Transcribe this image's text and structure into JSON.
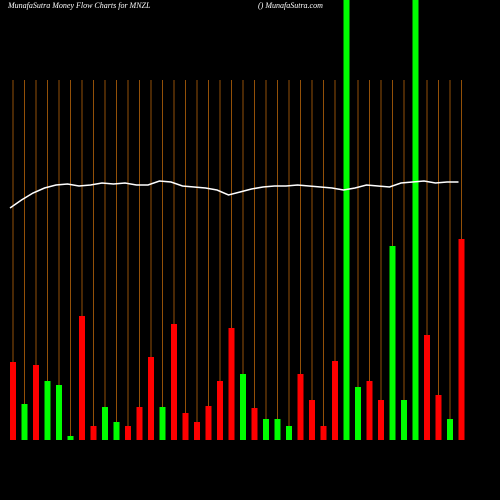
{
  "chart_data": {
    "type": "bar",
    "title": "MunafaSutra  Money Flow  Charts for MNZL",
    "subtitle": "() MunafaSutra.com",
    "categories": [
      null,
      null,
      null,
      null,
      null,
      null,
      null,
      null,
      null,
      null,
      null,
      null,
      null,
      null,
      null,
      null,
      null,
      null,
      null,
      null,
      null,
      null,
      null,
      null,
      null,
      null,
      null,
      null,
      null,
      null,
      null,
      null,
      null,
      null,
      null,
      null,
      null,
      null,
      null,
      null
    ],
    "values": [
      78,
      36,
      75,
      59,
      55,
      4,
      124,
      14,
      33,
      18,
      14,
      33,
      83,
      33,
      116,
      27,
      18,
      34,
      59,
      112,
      66,
      32,
      21,
      21,
      14,
      66,
      40,
      14,
      79,
      440,
      53,
      59,
      40,
      194,
      40,
      440,
      105,
      45,
      21,
      201
    ],
    "colors": [
      "#ff0000",
      "#00ff00",
      "#ff0000",
      "#00ff00",
      "#00ff00",
      "#00ff00",
      "#ff0000",
      "#ff0000",
      "#00ff00",
      "#00ff00",
      "#ff0000",
      "#ff0000",
      "#ff0000",
      "#00ff00",
      "#ff0000",
      "#ff0000",
      "#ff0000",
      "#ff0000",
      "#ff0000",
      "#ff0000",
      "#00ff00",
      "#ff0000",
      "#00ff00",
      "#00ff00",
      "#00ff00",
      "#ff0000",
      "#ff0000",
      "#ff0000",
      "#ff0000",
      "#00ff00",
      "#00ff00",
      "#ff0000",
      "#ff0000",
      "#00ff00",
      "#00ff00",
      "#00ff00",
      "#ff0000",
      "#ff0000",
      "#00ff00",
      "#ff0000"
    ],
    "line_values": [
      232,
      240,
      247,
      252,
      255,
      256,
      254,
      255,
      257,
      256,
      257,
      255,
      255,
      259,
      258,
      254,
      253,
      252,
      250,
      245,
      248,
      251,
      253,
      254,
      254,
      255,
      254,
      253,
      252,
      250,
      252,
      255,
      254,
      253,
      257,
      258,
      259,
      257,
      258,
      258
    ],
    "line_color": "#ffffff",
    "grid_color": "#b8650a",
    "ylim": [
      0,
      440
    ]
  }
}
